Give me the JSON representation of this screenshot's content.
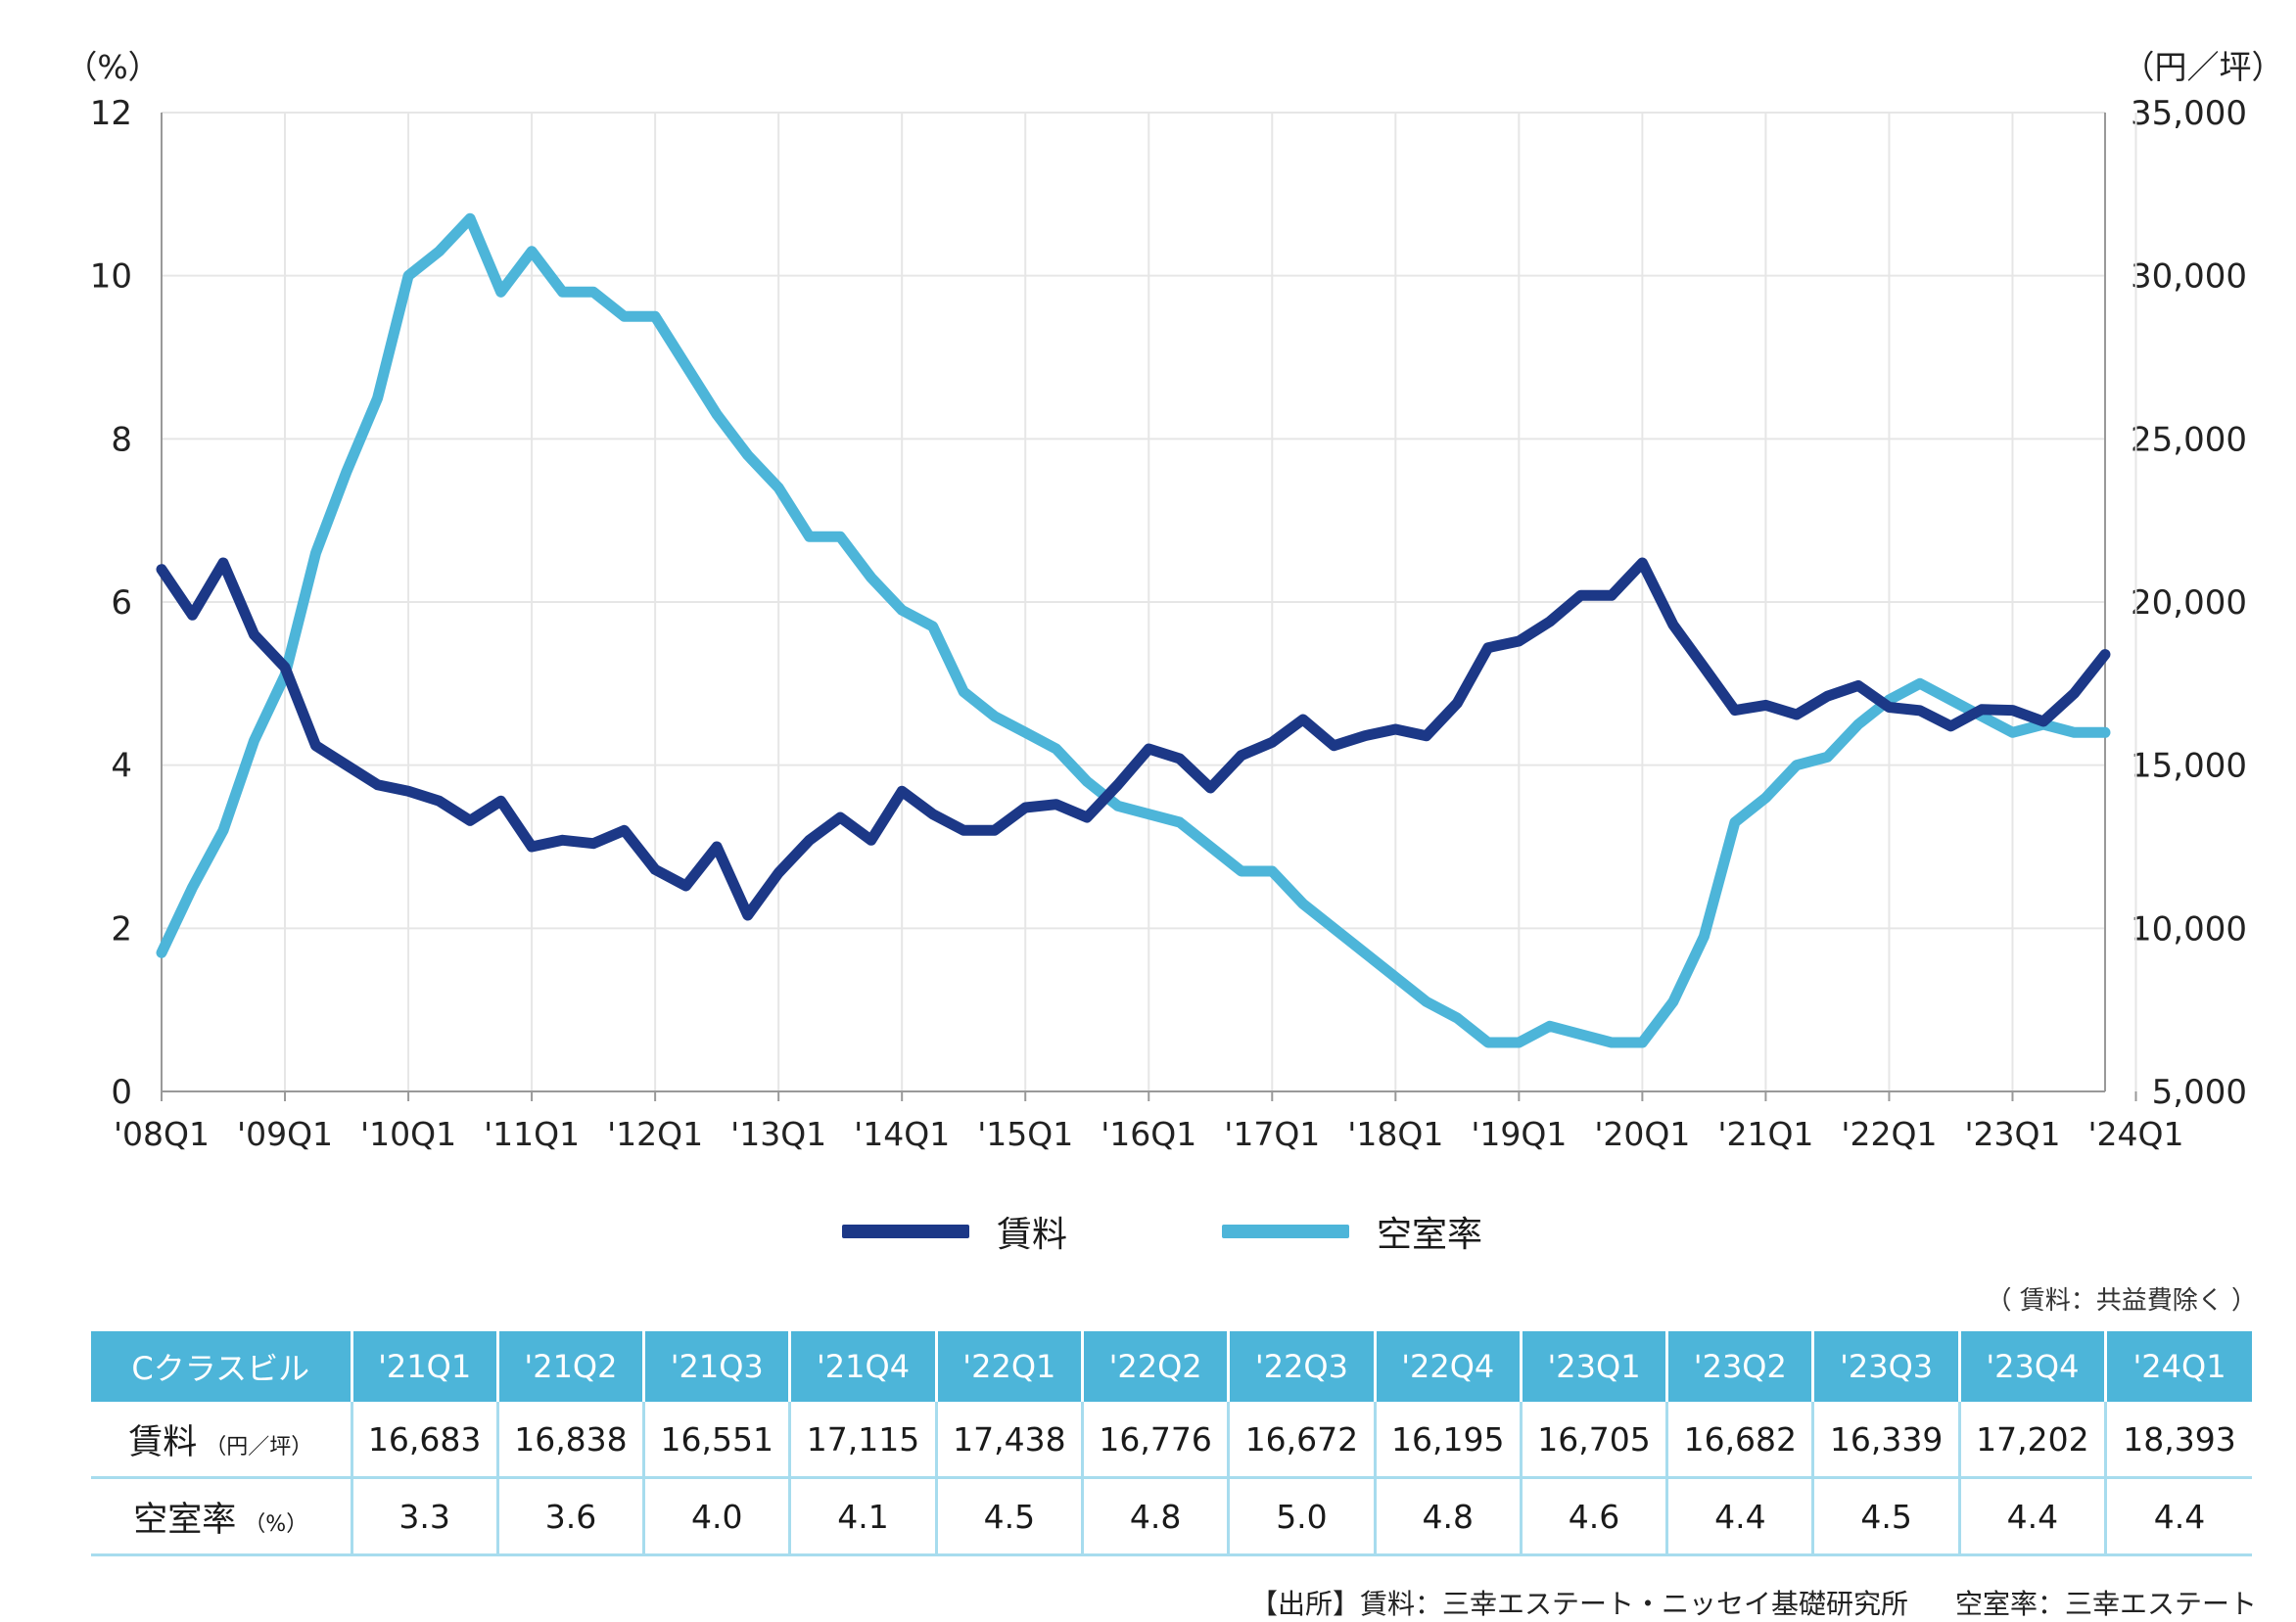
{
  "chart_data": {
    "type": "line",
    "left_axis_unit": "（%）",
    "right_axis_unit": "（円／坪）",
    "y_left_range": [
      0,
      12
    ],
    "y_left_ticks": [
      "0",
      "2",
      "4",
      "6",
      "8",
      "10",
      "12"
    ],
    "y_right_range": [
      5000,
      35000
    ],
    "y_right_ticks": [
      "5,000",
      "10,000",
      "15,000",
      "20,000",
      "25,000",
      "30,000",
      "35,000"
    ],
    "x_ticks": [
      "'08Q1",
      "'09Q1",
      "'10Q1",
      "'11Q1",
      "'12Q1",
      "'13Q1",
      "'14Q1",
      "'15Q1",
      "'16Q1",
      "'17Q1",
      "'18Q1",
      "'19Q1",
      "'20Q1",
      "'21Q1",
      "'22Q1",
      "'23Q1",
      "'24Q1"
    ],
    "grid": true,
    "legend_position": "bottom",
    "series": [
      {
        "name": "賃料",
        "axis": "right",
        "color": "#1c3887",
        "values": [
          21000,
          19600,
          21200,
          19000,
          18000,
          15600,
          15000,
          14400,
          14200,
          13900,
          13300,
          13900,
          12500,
          12700,
          12600,
          13000,
          11800,
          11300,
          12500,
          10400,
          11700,
          12700,
          13400,
          12700,
          14200,
          13500,
          13000,
          13000,
          13700,
          13800,
          13400,
          14400,
          15500,
          15200,
          14300,
          15300,
          15700,
          16400,
          15600,
          15900,
          16100,
          15900,
          16900,
          18600,
          18800,
          19400,
          20200,
          20200,
          21200,
          19300,
          18000,
          16683,
          16838,
          16551,
          17115,
          17438,
          16776,
          16672,
          16195,
          16705,
          16682,
          16339,
          17202,
          18393
        ]
      },
      {
        "name": "空室率",
        "axis": "left",
        "color": "#4db5d9",
        "values": [
          1.7,
          2.5,
          3.2,
          4.3,
          5.1,
          6.6,
          7.6,
          8.5,
          10.0,
          10.3,
          10.7,
          9.8,
          10.3,
          9.8,
          9.8,
          9.5,
          9.5,
          8.9,
          8.3,
          7.8,
          7.4,
          6.8,
          6.8,
          6.3,
          5.9,
          5.7,
          4.9,
          4.6,
          4.4,
          4.2,
          3.8,
          3.5,
          3.4,
          3.3,
          3.0,
          2.7,
          2.7,
          2.3,
          2.0,
          1.7,
          1.4,
          1.1,
          0.9,
          0.6,
          0.6,
          0.8,
          0.7,
          0.6,
          0.6,
          1.1,
          1.9,
          3.3,
          3.6,
          4.0,
          4.1,
          4.5,
          4.8,
          5.0,
          4.8,
          4.6,
          4.4,
          4.5,
          4.4,
          4.4
        ]
      }
    ]
  },
  "legend": [
    "賃料",
    "空室率"
  ],
  "note": "（ 賃料：共益費除く ）",
  "table": {
    "header_label": "Cクラスビル",
    "columns": [
      "'21Q1",
      "'21Q2",
      "'21Q3",
      "'21Q4",
      "'22Q1",
      "'22Q2",
      "'22Q3",
      "'22Q4",
      "'23Q1",
      "'23Q2",
      "'23Q3",
      "'23Q4",
      "'24Q1"
    ],
    "rows": [
      {
        "label": "賃料",
        "unit": "（円／坪）",
        "values": [
          "16,683",
          "16,838",
          "16,551",
          "17,115",
          "17,438",
          "16,776",
          "16,672",
          "16,195",
          "16,705",
          "16,682",
          "16,339",
          "17,202",
          "18,393"
        ]
      },
      {
        "label": "空室率",
        "unit": "（%）",
        "values": [
          "3.3",
          "3.6",
          "4.0",
          "4.1",
          "4.5",
          "4.8",
          "5.0",
          "4.8",
          "4.6",
          "4.4",
          "4.5",
          "4.4",
          "4.4"
        ]
      }
    ]
  },
  "source": [
    "【出所】賃料：三幸エステート・ニッセイ基礎研究所",
    "空室率：三幸エステート"
  ]
}
